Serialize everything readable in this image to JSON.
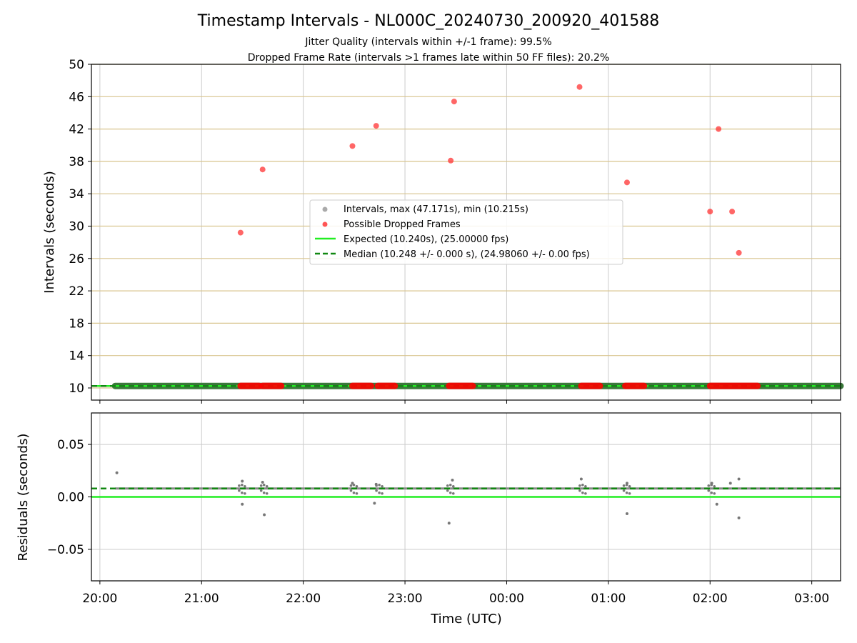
{
  "figure": {
    "title": "Timestamp Intervals - NL000C_20240730_200920_401588",
    "subtitle_line1": "Jitter Quality (intervals within +/-1 frame): 99.5%",
    "subtitle_line2": "Dropped Frame Rate (intervals >1 frames late within 50 FF files): 20.2%"
  },
  "chart_data": [
    {
      "type": "scatter",
      "panel": "top",
      "ylabel": "Intervals (seconds)",
      "xlabel": "",
      "xlim": [
        "19:55",
        "03:17"
      ],
      "ylim": [
        8.5,
        50
      ],
      "y_ticks": [
        "10",
        "14",
        "18",
        "22",
        "26",
        "30",
        "34",
        "38",
        "42",
        "46",
        "50"
      ],
      "x_ticks": [
        "20:00",
        "21:00",
        "22:00",
        "23:00",
        "00:00",
        "01:00",
        "02:00",
        "03:00"
      ],
      "grid": {
        "horizontal": true,
        "horizontal_color": "#d8c48e",
        "vertical": true,
        "vertical_color": "#cccccc"
      },
      "legend": {
        "placement": "center",
        "entries": [
          {
            "label": "Intervals, max (47.171s), min (10.215s)",
            "marker": "circle",
            "color": "#aaaaaa"
          },
          {
            "label": "Possible Dropped Frames",
            "marker": "circle",
            "color": "#ff5555"
          },
          {
            "label": "Expected (10.240s), (25.00000 fps)",
            "marker": "line",
            "color": "#22ee22"
          },
          {
            "label": "Median (10.248 +/- 0.000 s), (24.98060 +/- 0.00 fps)",
            "marker": "dashed",
            "color": "#118811"
          }
        ]
      },
      "series": [
        {
          "name": "Intervals, max (47.171s), min (10.215s)",
          "kind": "band",
          "color": "#555555",
          "x_range": [
            "20:09",
            "03:17"
          ],
          "y": 10.248
        },
        {
          "name": "Possible Dropped Frames",
          "kind": "points",
          "color": "#ff3333",
          "points": [
            {
              "x": "21:23",
              "y": 29.2
            },
            {
              "x": "21:36",
              "y": 37.0
            },
            {
              "x": "22:29",
              "y": 39.9
            },
            {
              "x": "22:43",
              "y": 42.4
            },
            {
              "x": "23:27",
              "y": 38.1
            },
            {
              "x": "23:29",
              "y": 45.4
            },
            {
              "x": "00:43",
              "y": 47.2
            },
            {
              "x": "01:11",
              "y": 35.4
            },
            {
              "x": "02:00",
              "y": 31.8
            },
            {
              "x": "02:05",
              "y": 42.0
            },
            {
              "x": "02:13",
              "y": 31.8
            },
            {
              "x": "02:17",
              "y": 26.7
            }
          ]
        },
        {
          "name": "Possible Dropped Frames (near baseline)",
          "kind": "clusters",
          "color": "#ff0000",
          "y": 10.25,
          "ranges": [
            [
              "21:23",
              "21:34"
            ],
            [
              "21:36",
              "21:47"
            ],
            [
              "22:29",
              "22:40"
            ],
            [
              "22:44",
              "22:54"
            ],
            [
              "23:26",
              "23:40"
            ],
            [
              "00:44",
              "00:55"
            ],
            [
              "01:10",
              "01:21"
            ],
            [
              "02:00",
              "02:28"
            ]
          ]
        },
        {
          "name": "Expected (10.240s), (25.00000 fps)",
          "kind": "hline",
          "color": "#22ee22",
          "y": 10.24
        },
        {
          "name": "Median (10.248 +/- 0.000 s), (24.98060 +/- 0.00 fps)",
          "kind": "hline-dashed",
          "color": "#118811",
          "y": 10.248
        }
      ]
    },
    {
      "type": "scatter",
      "panel": "bottom",
      "ylabel": "Residuals (seconds)",
      "xlabel": "Time (UTC)",
      "xlim": [
        "19:55",
        "03:17"
      ],
      "ylim": [
        -0.08,
        0.08
      ],
      "y_ticks": [
        "0.05",
        "0.00",
        "−0.05"
      ],
      "y_tick_values": [
        0.05,
        0.0,
        -0.05
      ],
      "x_ticks": [
        "20:00",
        "21:00",
        "22:00",
        "23:00",
        "00:00",
        "01:00",
        "02:00",
        "03:00"
      ],
      "grid": {
        "horizontal": true,
        "vertical": true,
        "color": "#cccccc"
      },
      "series": [
        {
          "name": "Residuals",
          "kind": "points",
          "color": "#777777",
          "baseline": 0.008,
          "points": [
            {
              "x": "20:10",
              "y": 0.023
            },
            {
              "x": "21:24",
              "y": 0.015
            },
            {
              "x": "21:24",
              "y": -0.007
            },
            {
              "x": "21:36",
              "y": 0.014
            },
            {
              "x": "21:37",
              "y": -0.017
            },
            {
              "x": "22:29",
              "y": 0.013
            },
            {
              "x": "22:43",
              "y": 0.012
            },
            {
              "x": "22:42",
              "y": -0.006
            },
            {
              "x": "23:28",
              "y": 0.016
            },
            {
              "x": "23:26",
              "y": -0.025
            },
            {
              "x": "00:44",
              "y": 0.017
            },
            {
              "x": "01:11",
              "y": 0.013
            },
            {
              "x": "01:11",
              "y": -0.016
            },
            {
              "x": "02:01",
              "y": 0.013
            },
            {
              "x": "02:04",
              "y": -0.007
            },
            {
              "x": "02:12",
              "y": 0.013
            },
            {
              "x": "02:17",
              "y": 0.017
            },
            {
              "x": "02:17",
              "y": -0.02
            }
          ]
        },
        {
          "name": "Expected",
          "kind": "hline",
          "color": "#22ee22",
          "y": 0.0
        },
        {
          "name": "Median",
          "kind": "hline-dashed",
          "color": "#118811",
          "y": 0.008
        }
      ]
    }
  ]
}
